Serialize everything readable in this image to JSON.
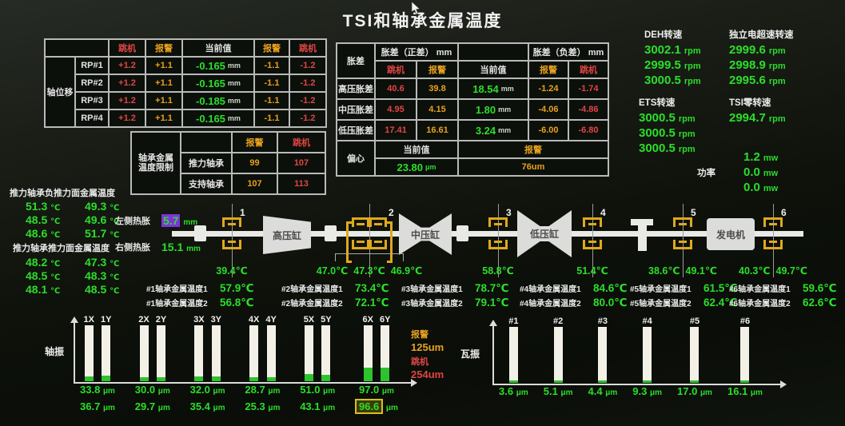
{
  "title": "TSI和轴承金属温度",
  "colors": {
    "green": "#2cdd2c",
    "orange": "#e8a11e",
    "red": "#e04545",
    "purple": "#7d35d8",
    "gold": "#e0a81c"
  },
  "axial": {
    "group": "轴位移",
    "h": {
      "trip": "跳机",
      "alarm": "报警",
      "current": "当前值",
      "alarm2": "报警",
      "trip2": "跳机"
    },
    "rows": [
      {
        "name": "RP#1",
        "trip": "+1.2",
        "alarm": "+1.1",
        "cur": "-0.165",
        "unit": "mm",
        "nalarm": "-1.1",
        "ntrip": "-1.2"
      },
      {
        "name": "RP#2",
        "trip": "+1.2",
        "alarm": "+1.1",
        "cur": "-0.165",
        "unit": "mm",
        "nalarm": "-1.1",
        "ntrip": "-1.2"
      },
      {
        "name": "RP#3",
        "trip": "+1.2",
        "alarm": "+1.1",
        "cur": "-0.185",
        "unit": "mm",
        "nalarm": "-1.1",
        "ntrip": "-1.2"
      },
      {
        "name": "RP#4",
        "trip": "+1.2",
        "alarm": "+1.1",
        "cur": "-0.165",
        "unit": "mm",
        "nalarm": "-1.1",
        "ntrip": "-1.2"
      }
    ]
  },
  "limits": {
    "group_line1": "轴承金属",
    "group_line2": "温度限制",
    "h": {
      "alarm": "报警",
      "trip": "跳机"
    },
    "rows": [
      {
        "name": "推力轴承",
        "alarm": "99",
        "trip": "107"
      },
      {
        "name": "支持轴承",
        "alarm": "107",
        "trip": "113"
      }
    ]
  },
  "expansion": {
    "group": "胀差",
    "pos": "胀差（正差） mm",
    "neg": "胀差（负差） mm",
    "h": {
      "trip": "跳机",
      "alarm": "报警",
      "current": "当前值",
      "alarm2": "报警",
      "trip2": "跳机"
    },
    "rows": [
      {
        "name": "高压胀差",
        "trip": "40.6",
        "alarm": "39.8",
        "cur": "18.54",
        "unit": "mm",
        "nalarm": "-1.24",
        "ntrip": "-1.74"
      },
      {
        "name": "中压胀差",
        "trip": "4.95",
        "alarm": "4.15",
        "cur": "1.80",
        "unit": "mm",
        "nalarm": "-4.06",
        "ntrip": "-4.86"
      },
      {
        "name": "低压胀差",
        "trip": "17.41",
        "alarm": "16.61",
        "cur": "3.24",
        "unit": "mm",
        "nalarm": "-6.00",
        "ntrip": "-6.80"
      }
    ],
    "ecc": {
      "name": "偏心",
      "cur_label": "当前值",
      "alarm_label": "报警",
      "cur": "23.80",
      "cur_unit": "μm",
      "alarm": "76um"
    }
  },
  "speeds": {
    "deh": {
      "label": "DEH转速",
      "v": [
        "3002.1",
        "2999.5",
        "3000.5"
      ],
      "unit": "rpm"
    },
    "indep": {
      "label": "独立电超速转速",
      "v": [
        "2999.6",
        "2998.9",
        "2995.6"
      ],
      "unit": "rpm"
    },
    "ets": {
      "label": "ETS转速",
      "v": [
        "3000.5",
        "3000.5",
        "3000.5"
      ],
      "unit": "rpm"
    },
    "tsi": {
      "label": "TSI零转速",
      "v": [
        "2994.7"
      ],
      "unit": "rpm"
    },
    "power": {
      "label": "功率",
      "v": [
        "1.2",
        "0.0",
        "0.0"
      ],
      "unit": "mw"
    }
  },
  "thrust_neg": {
    "label": "推力轴承负推力面金属温度",
    "unit": "℃",
    "v": [
      [
        "51.3",
        "49.3"
      ],
      [
        "48.5",
        "49.6"
      ],
      [
        "48.6",
        "51.7"
      ]
    ]
  },
  "thrust_pos": {
    "label": "推力轴承推力面金属温度",
    "unit": "℃",
    "v": [
      [
        "48.2",
        "47.3"
      ],
      [
        "48.5",
        "48.3"
      ],
      [
        "48.1",
        "48.5"
      ]
    ]
  },
  "exp_left": {
    "label": "左侧热胀",
    "value": "5.7",
    "unit": "mm"
  },
  "exp_right": {
    "label": "右侧热胀",
    "value": "15.1",
    "unit": "mm"
  },
  "machine": {
    "hp": "高压缸",
    "ip": "中压缸",
    "lp": "低压缸",
    "gen": "发电机",
    "unit": "℃",
    "bearings": [
      {
        "no": "1",
        "t": [
          "39.4"
        ]
      },
      {
        "no": "2",
        "t": [
          "47.0",
          "47.3",
          "46.9"
        ]
      },
      {
        "no": "3",
        "t": [
          "58.8"
        ]
      },
      {
        "no": "4",
        "t": [
          "51.4"
        ]
      },
      {
        "no": "5",
        "t": [
          "38.6",
          "49.1"
        ]
      },
      {
        "no": "6",
        "t": [
          "40.3",
          "49.7"
        ]
      }
    ]
  },
  "metal": {
    "unit": "℃",
    "blocks": [
      {
        "l1": "#1轴承金属温度1",
        "v1": "57.9",
        "l2": "#1轴承金属温度2",
        "v2": "56.8"
      },
      {
        "l1": "#2轴承金属温度1",
        "v1": "73.4",
        "l2": "#2轴承金属温度2",
        "v2": "72.1"
      },
      {
        "l1": "#3轴承金属温度1",
        "v1": "78.7",
        "l2": "#3轴承金属温度2",
        "v2": "79.1"
      },
      {
        "l1": "#4轴承金属温度1",
        "v1": "84.6",
        "l2": "#4轴承金属温度2",
        "v2": "80.0"
      },
      {
        "l1": "#5轴承金属温度1",
        "v1": "61.5",
        "l2": "#5轴承金属温度2",
        "v2": "62.4"
      },
      {
        "l1": "#6轴承金属温度1",
        "v1": "59.6",
        "l2": "#6轴承金属温度2",
        "v2": "62.6"
      }
    ]
  },
  "chart_data": [
    {
      "type": "bar",
      "title": "轴振",
      "categories": [
        "1X",
        "1Y",
        "2X",
        "2Y",
        "3X",
        "3Y",
        "4X",
        "4Y",
        "5X",
        "5Y",
        "6X",
        "6Y"
      ],
      "values": [
        33.8,
        36.7,
        30.0,
        29.7,
        32.0,
        35.4,
        28.7,
        25.3,
        51.0,
        43.1,
        97.0,
        96.6
      ],
      "unit": "μm",
      "ylim": [
        0,
        254
      ],
      "grid": false,
      "legend_position": "right",
      "alarm_label": "报警",
      "alarm_value": "125um",
      "trip_label": "跳机",
      "trip_value": "254um",
      "highlight_index": 11
    },
    {
      "type": "bar",
      "title": "瓦振",
      "categories": [
        "#1",
        "#2",
        "#3",
        "#4",
        "#5",
        "#6"
      ],
      "values": [
        3.6,
        5.1,
        4.4,
        9.3,
        17.0,
        16.1
      ],
      "unit": "μm",
      "ylim": [
        0,
        254
      ],
      "grid": false
    }
  ]
}
